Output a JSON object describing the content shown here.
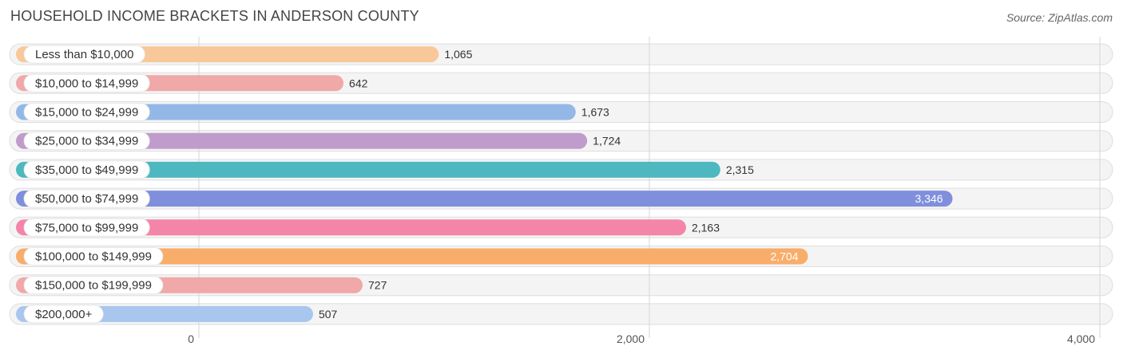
{
  "title": "HOUSEHOLD INCOME BRACKETS IN ANDERSON COUNTY",
  "source": "Source: ZipAtlas.com",
  "chart_data": {
    "type": "bar",
    "orientation": "horizontal",
    "title": "HOUSEHOLD INCOME BRACKETS IN ANDERSON COUNTY",
    "categories": [
      "Less than $10,000",
      "$10,000 to $14,999",
      "$15,000 to $24,999",
      "$25,000 to $34,999",
      "$35,000 to $49,999",
      "$50,000 to $74,999",
      "$75,000 to $99,999",
      "$100,000 to $149,999",
      "$150,000 to $199,999",
      "$200,000+"
    ],
    "values": [
      1065,
      642,
      1673,
      1724,
      2315,
      3346,
      2163,
      2704,
      727,
      507
    ],
    "value_labels": [
      "1,065",
      "642",
      "1,673",
      "1,724",
      "2,315",
      "3,346",
      "2,163",
      "2,704",
      "727",
      "507"
    ],
    "colors": [
      "#f8c89a",
      "#f0a8a8",
      "#93b8e8",
      "#c09ccc",
      "#4db8c0",
      "#7f8fdc",
      "#f585a8",
      "#f8ad6a",
      "#f0a8a8",
      "#a8c6ee"
    ],
    "xlim": [
      0,
      4000
    ],
    "xticks": [
      0,
      2000,
      4000
    ],
    "xtick_labels": [
      "0",
      "2,000",
      "4,000"
    ],
    "grid": true
  }
}
